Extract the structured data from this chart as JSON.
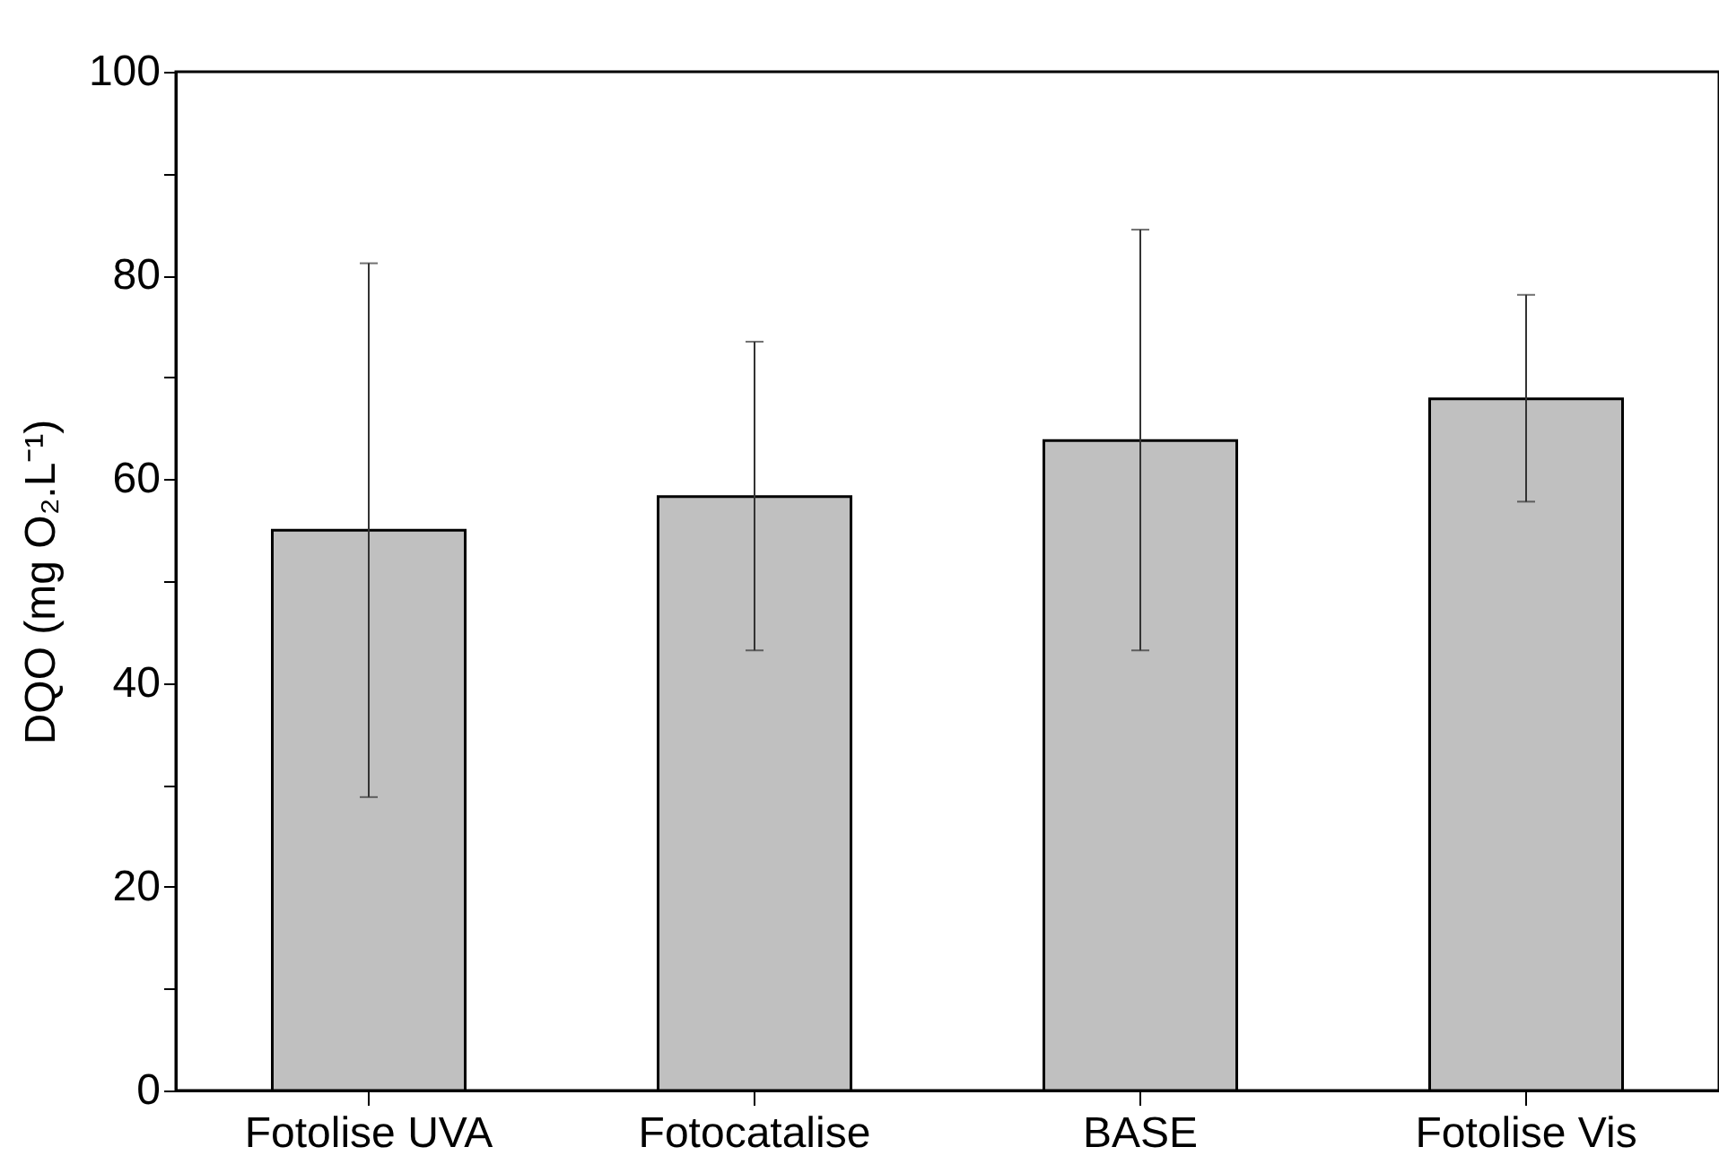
{
  "chart_data": {
    "type": "bar",
    "ylabel": "DQO (mg O₂.L⁻¹)",
    "categories": [
      "Fotolise UVA",
      "Fotocatalise",
      "BASE",
      "Fotolise Vis"
    ],
    "values": [
      55,
      58.3,
      63.8,
      67.9
    ],
    "errors": [
      [
        28.8,
        81.2
      ],
      [
        43.2,
        73.5
      ],
      [
        43.2,
        84.5
      ],
      [
        57.8,
        78.1
      ]
    ],
    "color": "#c0c0c0",
    "ylim": [
      0,
      100
    ],
    "yticks": [
      0,
      {
        "value": 10,
        "label": null
      },
      20,
      {
        "value": 30,
        "label": null
      },
      40,
      {
        "value": 50,
        "label": null
      },
      60,
      {
        "value": 70,
        "label": null
      },
      80,
      {
        "value": 90,
        "label": null
      },
      100
    ],
    "grid": false
  }
}
